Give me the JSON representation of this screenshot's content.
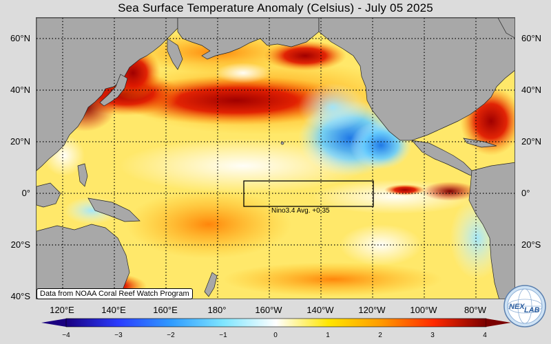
{
  "title": "Sea Surface Temperature Anomaly (Celsius) - July 05 2025",
  "map": {
    "projection": "equirectangular",
    "lon_range": "110°E to 70°W",
    "lat_range": "40°S to 68°N",
    "land_color": "#a8a8a8",
    "ocean_base_color": "#ffe870",
    "gridlines": "dotted"
  },
  "lat_labels": [
    "60°N",
    "40°N",
    "20°N",
    "0°",
    "20°S",
    "40°S"
  ],
  "lon_labels": [
    "120°E",
    "140°E",
    "160°E",
    "180°",
    "160°W",
    "140°W",
    "120°W",
    "100°W",
    "80°W"
  ],
  "nino_box": {
    "label": "Nino3.4 Avg. +0.35",
    "region": "5°S–5°N, 170°W–120°W"
  },
  "credit": "Data from NOAA Coral Reef Watch Program",
  "colorbar": {
    "min": -4,
    "max": 4,
    "tick_labels": [
      "−4",
      "−3",
      "−2",
      "−1",
      "0",
      "1",
      "2",
      "3",
      "4"
    ],
    "colors": [
      "#1a0080",
      "#2a3cff",
      "#2f9bff",
      "#7fe6ff",
      "#ffffff",
      "#ffe600",
      "#ff9a00",
      "#ff2a00",
      "#7a0000"
    ]
  },
  "logo": {
    "text": "NEXLAB",
    "parts": [
      "NEX",
      "LAB"
    ]
  }
}
